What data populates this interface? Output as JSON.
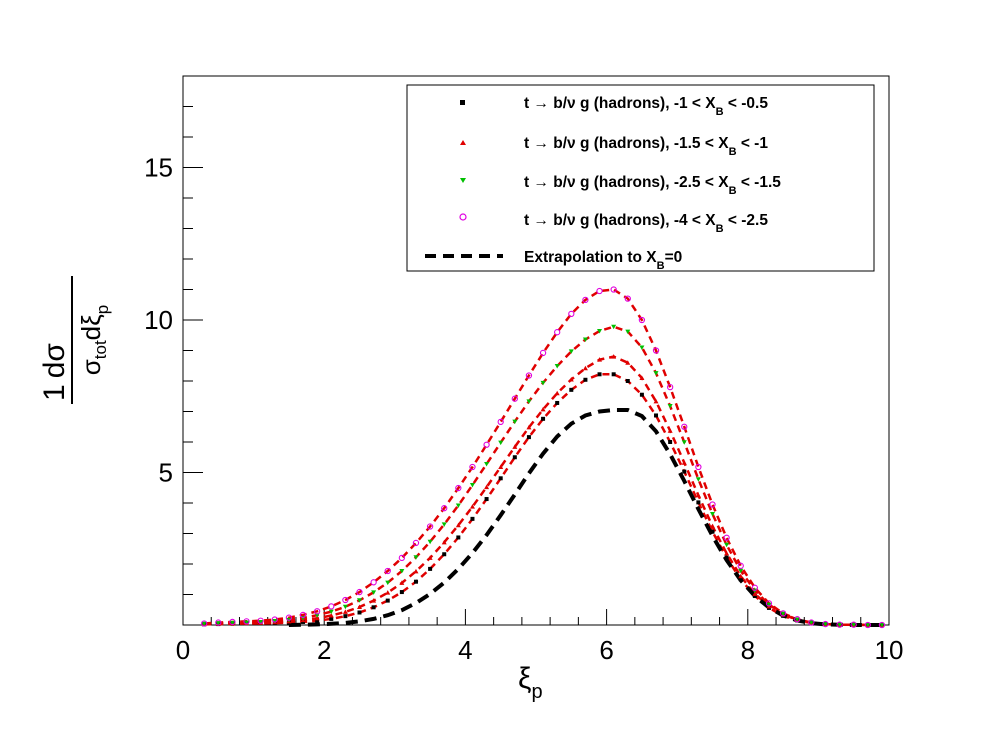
{
  "chart_data": {
    "type": "scatter",
    "title": "",
    "xlabel": "ξp",
    "ylabel": "1 dσ / σtot dξp",
    "xlim": [
      0,
      10
    ],
    "ylim": [
      0,
      18
    ],
    "x_ticks": [
      0,
      2,
      4,
      6,
      8,
      10
    ],
    "y_ticks": [
      5,
      10,
      15
    ],
    "x_tick_labels": [
      "0",
      "2",
      "4",
      "6",
      "8",
      "10"
    ],
    "y_tick_labels": [
      "5",
      "10",
      "15"
    ],
    "grid": false,
    "legend_position": "top-right",
    "x": [
      0.3,
      0.5,
      0.7,
      0.9,
      1.1,
      1.3,
      1.5,
      1.7,
      1.9,
      2.1,
      2.3,
      2.5,
      2.7,
      2.9,
      3.1,
      3.3,
      3.5,
      3.7,
      3.9,
      4.1,
      4.3,
      4.5,
      4.7,
      4.9,
      5.1,
      5.3,
      5.5,
      5.7,
      5.9,
      6.1,
      6.3,
      6.5,
      6.7,
      6.9,
      7.1,
      7.3,
      7.5,
      7.7,
      7.9,
      8.1,
      8.3,
      8.5,
      8.7,
      8.9,
      9.1,
      9.3,
      9.5,
      9.7,
      9.9
    ],
    "series": [
      {
        "name": "t → b/ν g (hadrons), -1 < X_B < -0.5",
        "marker": "square",
        "color": "#000000",
        "values": [
          0.02,
          0.03,
          0.04,
          0.05,
          0.05,
          0.06,
          0.08,
          0.1,
          0.14,
          0.2,
          0.29,
          0.41,
          0.58,
          0.8,
          1.08,
          1.42,
          1.84,
          2.32,
          2.87,
          3.48,
          4.13,
          4.81,
          5.5,
          6.16,
          6.76,
          7.28,
          7.71,
          8.04,
          8.22,
          8.22,
          8.0,
          7.55,
          6.87,
          6.0,
          5.03,
          4.02,
          3.06,
          2.21,
          1.5,
          0.95,
          0.56,
          0.3,
          0.15,
          0.07,
          0.03,
          0.01,
          0.01,
          0.0,
          0.0
        ]
      },
      {
        "name": "t → b/ν g (hadrons), -1.5 < X_B < -1",
        "marker": "triangle-up",
        "color": "#e00000",
        "values": [
          0.03,
          0.04,
          0.05,
          0.06,
          0.07,
          0.09,
          0.12,
          0.16,
          0.22,
          0.31,
          0.43,
          0.59,
          0.8,
          1.06,
          1.38,
          1.76,
          2.2,
          2.71,
          3.27,
          3.88,
          4.52,
          5.18,
          5.84,
          6.48,
          7.07,
          7.6,
          8.05,
          8.42,
          8.7,
          8.8,
          8.6,
          8.1,
          7.33,
          6.37,
          5.32,
          4.25,
          3.24,
          2.35,
          1.6,
          1.02,
          0.61,
          0.34,
          0.17,
          0.08,
          0.03,
          0.01,
          0.01,
          0.0,
          0.0
        ]
      },
      {
        "name": "t → b/ν g (hadrons), -2.5 < X_B < -1.5",
        "marker": "triangle-down",
        "color": "#00c000",
        "values": [
          0.04,
          0.06,
          0.07,
          0.08,
          0.1,
          0.13,
          0.17,
          0.23,
          0.32,
          0.44,
          0.6,
          0.81,
          1.07,
          1.39,
          1.77,
          2.22,
          2.73,
          3.3,
          3.92,
          4.59,
          5.28,
          5.98,
          6.67,
          7.33,
          7.94,
          8.49,
          8.97,
          9.36,
          9.64,
          9.78,
          9.62,
          9.1,
          8.26,
          7.18,
          5.99,
          4.78,
          3.64,
          2.63,
          1.78,
          1.13,
          0.67,
          0.37,
          0.18,
          0.08,
          0.03,
          0.01,
          0.01,
          0.0,
          0.0
        ]
      },
      {
        "name": "t → b/ν g (hadrons), -4 < X_B < -2.5",
        "marker": "circle-open",
        "color": "#e000e0",
        "values": [
          0.05,
          0.08,
          0.1,
          0.12,
          0.14,
          0.18,
          0.24,
          0.33,
          0.45,
          0.61,
          0.82,
          1.08,
          1.4,
          1.77,
          2.2,
          2.69,
          3.23,
          3.83,
          4.49,
          5.18,
          5.91,
          6.66,
          7.42,
          8.18,
          8.92,
          9.6,
          10.2,
          10.66,
          10.95,
          11.0,
          10.7,
          10.0,
          9.0,
          7.8,
          6.5,
          5.18,
          3.95,
          2.86,
          1.94,
          1.22,
          0.71,
          0.38,
          0.19,
          0.08,
          0.03,
          0.01,
          0.01,
          0.0,
          0.0
        ]
      }
    ],
    "extrapolation": {
      "name": "Extrapolation to X_B=0",
      "color": "#000000",
      "style": "dashed",
      "x": [
        1.5,
        1.7,
        1.9,
        2.1,
        2.3,
        2.5,
        2.7,
        2.9,
        3.1,
        3.3,
        3.5,
        3.7,
        3.9,
        4.1,
        4.3,
        4.5,
        4.7,
        4.9,
        5.1,
        5.3,
        5.5,
        5.7,
        5.9,
        6.1,
        6.3,
        6.5,
        6.7,
        6.9,
        7.1,
        7.3,
        7.5,
        7.7,
        7.9,
        8.1,
        8.3,
        8.5,
        8.7,
        8.9,
        9.1,
        9.3,
        9.5,
        9.7,
        9.9
      ],
      "values": [
        0.0,
        0.01,
        0.02,
        0.04,
        0.07,
        0.12,
        0.2,
        0.32,
        0.49,
        0.72,
        1.02,
        1.39,
        1.84,
        2.36,
        2.95,
        3.6,
        4.28,
        4.97,
        5.62,
        6.18,
        6.6,
        6.87,
        7.0,
        7.05,
        7.05,
        6.85,
        6.35,
        5.6,
        4.72,
        3.8,
        2.92,
        2.13,
        1.47,
        0.95,
        0.57,
        0.31,
        0.15,
        0.06,
        0.02,
        0.01,
        0.0,
        0.0,
        0.0
      ]
    },
    "fit_line_color": "#e00000",
    "legend": [
      {
        "prefix": "t → b/ν g (hadrons), ",
        "range_left": "-1 < X",
        "sub": "B",
        "range_right": " < -0.5"
      },
      {
        "prefix": "t → b/ν g (hadrons), ",
        "range_left": "-1.5 < X",
        "sub": "B",
        "range_right": " < -1"
      },
      {
        "prefix": "t → b/ν g (hadrons), ",
        "range_left": "-2.5 < X",
        "sub": "B",
        "range_right": " < -1.5"
      },
      {
        "prefix": "t → b/ν g (hadrons), ",
        "range_left": "-4 < X",
        "sub": "B",
        "range_right": " < -2.5"
      },
      {
        "prefix": "",
        "range_left": "Extrapolation to X",
        "sub": "B",
        "range_right": "=0"
      }
    ],
    "axis_text": {
      "ylabel_numerator": "1",
      "ylabel_dsigma": "dσ",
      "ylabel_sigma": "σ",
      "ylabel_tot": "tot",
      "ylabel_dxi": "dξ",
      "ylabel_p": "p",
      "xlabel_xi": "ξ",
      "xlabel_p": "p"
    }
  }
}
